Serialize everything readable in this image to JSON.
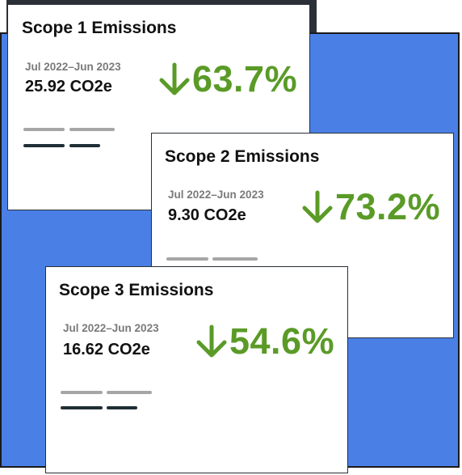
{
  "colors": {
    "background_panel": "#4a80e6",
    "card_background": "#ffffff",
    "decrease_green": "#5a9b27",
    "placeholder_grey": "#a6a6a6",
    "placeholder_dark": "#1f2e36"
  },
  "cards": [
    {
      "title": "Scope 1 Emissions",
      "period": "Jul 2022–Jun 2023",
      "value": "25.92 CO2e",
      "change_icon": "arrow-down-icon",
      "change": "63.7%"
    },
    {
      "title": "Scope 2 Emissions",
      "period": "Jul 2022–Jun 2023",
      "value": "9.30 CO2e",
      "change_icon": "arrow-down-icon",
      "change": "73.2%"
    },
    {
      "title": "Scope 3 Emissions",
      "period": "Jul 2022–Jun 2023",
      "value": "16.62 CO2e",
      "change_icon": "arrow-down-icon",
      "change": "54.6%"
    }
  ]
}
